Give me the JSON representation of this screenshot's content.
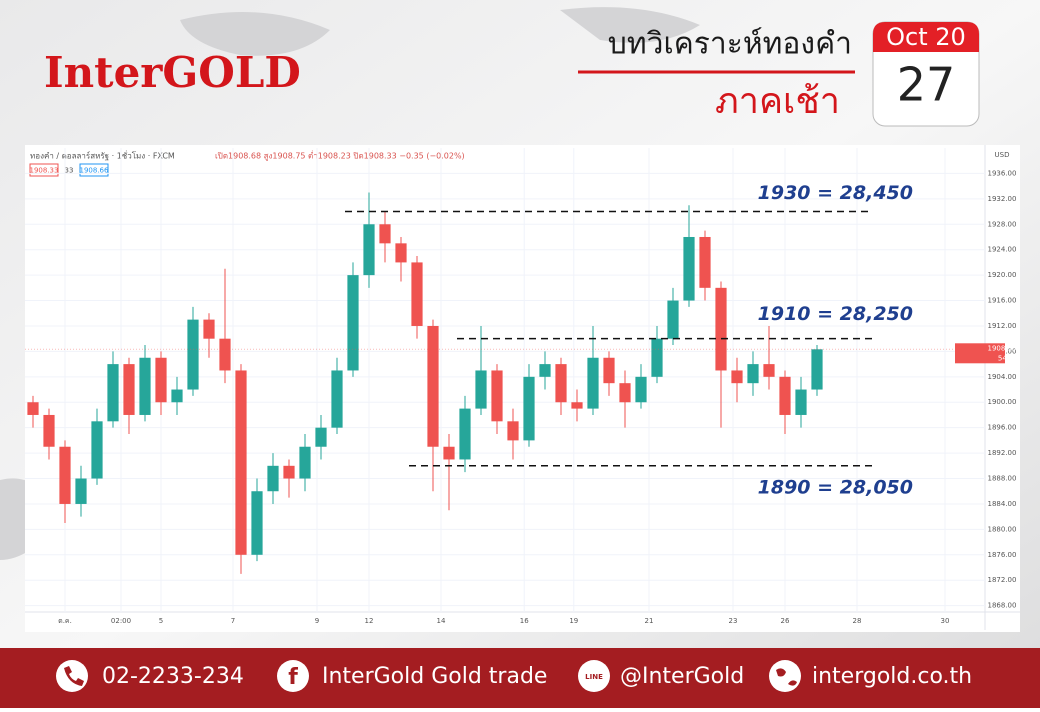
{
  "brand": "InterGOLD",
  "headline": {
    "title": "บทวิเคราะห์ทองคำ",
    "subtitle": "ภาคเช้า"
  },
  "date": {
    "month": "Oct 20",
    "day": "27"
  },
  "chart_data": {
    "type": "candlestick",
    "header": {
      "symbol": "ทองคำ / ดอลลาร์สหรัฐ · 1ชั่วโมง · FXCM",
      "ohlc": "เปิด1908.68 สูง1908.75 ต่ำ1908.23 ปิด1908.33 −0.35 (−0.02%)",
      "bid": "1908.33",
      "spread": "33",
      "ask": "1908.66",
      "currency": "USD",
      "countdown": "54:59"
    },
    "x": [
      1,
      3,
      5,
      7,
      9,
      11,
      13,
      15,
      17,
      19,
      21,
      23,
      25,
      27,
      29,
      31,
      33,
      35,
      37,
      39,
      41,
      43,
      45,
      47,
      49,
      51,
      53,
      55,
      57,
      59,
      61,
      63,
      65,
      67,
      69,
      71,
      73,
      75,
      77,
      79,
      81,
      83,
      85,
      87,
      89,
      91,
      93,
      95,
      97,
      99
    ],
    "open": [
      1900,
      1898,
      1893,
      1884,
      1888,
      1897,
      1906,
      1898,
      1907,
      1900,
      1902,
      1913,
      1910,
      1905,
      1876,
      1886,
      1890,
      1888,
      1893,
      1896,
      1905,
      1920,
      1928,
      1925,
      1922,
      1912,
      1893,
      1891,
      1899,
      1905,
      1897,
      1894,
      1904,
      1906,
      1900,
      1899,
      1907,
      1903,
      1900,
      1904,
      1910,
      1916,
      1926,
      1918,
      1905,
      1903,
      1906,
      1904,
      1898,
      1902
    ],
    "high": [
      1901,
      1899,
      1894,
      1890,
      1899,
      1908,
      1907,
      1909,
      1908,
      1904,
      1915,
      1914,
      1921,
      1906,
      1888,
      1892,
      1891,
      1895,
      1898,
      1907,
      1922,
      1933,
      1930,
      1926,
      1923,
      1913,
      1895,
      1901,
      1912,
      1906,
      1899,
      1906,
      1908,
      1907,
      1902,
      1912,
      1908,
      1905,
      1906,
      1912,
      1918,
      1931,
      1927,
      1919,
      1907,
      1908,
      1912,
      1905,
      1904,
      1909
    ],
    "low": [
      1896,
      1891,
      1881,
      1882,
      1887,
      1896,
      1895,
      1897,
      1898,
      1898,
      1901,
      1907,
      1903,
      1873,
      1875,
      1884,
      1885,
      1886,
      1891,
      1895,
      1904,
      1918,
      1922,
      1919,
      1910,
      1886,
      1883,
      1889,
      1898,
      1895,
      1891,
      1893,
      1902,
      1898,
      1897,
      1898,
      1901,
      1896,
      1899,
      1903,
      1909,
      1915,
      1916,
      1896,
      1900,
      1901,
      1902,
      1895,
      1896,
      1901
    ],
    "close": [
      1898,
      1893,
      1884,
      1888,
      1897,
      1906,
      1898,
      1907,
      1900,
      1902,
      1913,
      1910,
      1905,
      1876,
      1886,
      1890,
      1888,
      1893,
      1896,
      1905,
      1920,
      1928,
      1925,
      1922,
      1912,
      1893,
      1891,
      1899,
      1905,
      1897,
      1894,
      1904,
      1906,
      1900,
      1899,
      1907,
      1903,
      1900,
      1904,
      1910,
      1916,
      1926,
      1918,
      1905,
      1903,
      1906,
      1904,
      1898,
      1902,
      1908.33
    ],
    "up_color": "#26a69a",
    "down_color": "#ef5350",
    "last_price": 1908.33,
    "xlim": [
      0,
      120
    ],
    "xticks": [
      {
        "value": 5,
        "label": "ต.ค."
      },
      {
        "value": 12,
        "label": "02:00"
      },
      {
        "value": 17,
        "label": "5"
      },
      {
        "value": 26,
        "label": "7"
      },
      {
        "value": 36.5,
        "label": "9"
      },
      {
        "value": 43,
        "label": "12"
      },
      {
        "value": 52,
        "label": "14"
      },
      {
        "value": 62.4,
        "label": "16"
      },
      {
        "value": 68.6,
        "label": "19"
      },
      {
        "value": 78,
        "label": "21"
      },
      {
        "value": 88.5,
        "label": "23"
      },
      {
        "value": 95,
        "label": "26"
      },
      {
        "value": 104,
        "label": "28"
      },
      {
        "value": 115,
        "label": "30"
      }
    ],
    "ylim": [
      1867,
      1940
    ],
    "yticks": [
      {
        "value": 1868,
        "label": "1868.00"
      },
      {
        "value": 1872,
        "label": "1872.00"
      },
      {
        "value": 1876,
        "label": "1876.00"
      },
      {
        "value": 1880,
        "label": "1880.00"
      },
      {
        "value": 1884,
        "label": "1884.00"
      },
      {
        "value": 1888,
        "label": "1888.00"
      },
      {
        "value": 1892,
        "label": "1892.00"
      },
      {
        "value": 1896,
        "label": "1896.00"
      },
      {
        "value": 1900,
        "label": "1900.00"
      },
      {
        "value": 1904,
        "label": "1904.00"
      },
      {
        "value": 1908,
        "label": "1908.00"
      },
      {
        "value": 1912,
        "label": "1912.00"
      },
      {
        "value": 1916,
        "label": "1916.00"
      },
      {
        "value": 1920,
        "label": "1920.00"
      },
      {
        "value": 1924,
        "label": "1924.00"
      },
      {
        "value": 1928,
        "label": "1928.00"
      },
      {
        "value": 1932,
        "label": "1932.00"
      },
      {
        "value": 1936,
        "label": "1936.00"
      }
    ],
    "grid": true,
    "levels": [
      {
        "value": 1930,
        "label": "1930 = 28,450",
        "x_start": 40,
        "x_end": 106
      },
      {
        "value": 1910,
        "label": "1910 = 28,250",
        "x_start": 54,
        "x_end": 106
      },
      {
        "value": 1890,
        "label": "1890 = 28,050",
        "x_start": 48,
        "x_end": 106
      }
    ]
  },
  "footer": {
    "phone": "02-2233-234",
    "facebook": "InterGold Gold trade",
    "line": "@InterGold",
    "web": "intergold.co.th"
  }
}
